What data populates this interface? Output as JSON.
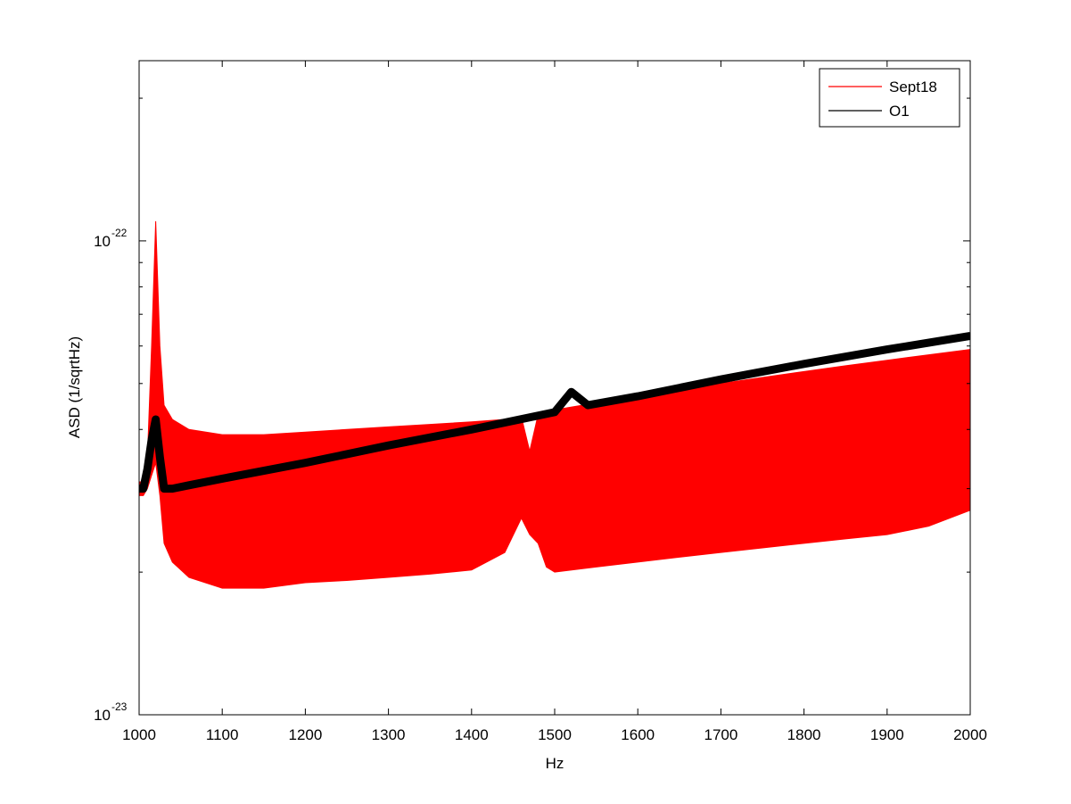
{
  "chart_data": {
    "type": "line",
    "xlabel": "Hz",
    "ylabel": "ASD (1/sqrtHz)",
    "x_ticks": [
      1000,
      1100,
      1200,
      1300,
      1400,
      1500,
      1600,
      1700,
      1800,
      1900,
      2000
    ],
    "xlim": [
      1000,
      2000
    ],
    "y_scale": "log",
    "ylim": [
      1e-23,
      2.4e-22
    ],
    "y_tick_labels": [
      {
        "value": 1e-23,
        "base": "10",
        "exp": "-23"
      },
      {
        "value": 1e-22,
        "base": "10",
        "exp": "-22"
      }
    ],
    "grid": false,
    "legend_position": "top-right",
    "series": [
      {
        "name": "Sept18",
        "color": "#ff0000",
        "x": [
          1000,
          1005,
          1010,
          1015,
          1020,
          1025,
          1030,
          1040,
          1060,
          1100,
          1150,
          1200,
          1250,
          1300,
          1350,
          1400,
          1440,
          1460,
          1470,
          1480,
          1490,
          1500,
          1550,
          1600,
          1650,
          1700,
          1750,
          1800,
          1850,
          1900,
          1950,
          2000
        ],
        "y_upper": [
          3.1e-23,
          3.1e-23,
          3.5e-23,
          6e-23,
          1.1e-22,
          6e-23,
          4.5e-23,
          4.2e-23,
          4e-23,
          3.9e-23,
          3.9e-23,
          3.95e-23,
          4e-23,
          4.05e-23,
          4.1e-23,
          4.15e-23,
          4.2e-23,
          4.25e-23,
          3.6e-23,
          4.3e-23,
          4.35e-23,
          4.4e-23,
          4.55e-23,
          4.7e-23,
          4.85e-23,
          5e-23,
          5.15e-23,
          5.3e-23,
          5.45e-23,
          5.6e-23,
          5.75e-23,
          5.9e-23
        ],
        "y_lower": [
          2.9e-23,
          2.9e-23,
          3e-23,
          3.2e-23,
          3.4e-23,
          2.9e-23,
          2.3e-23,
          2.1e-23,
          1.95e-23,
          1.85e-23,
          1.85e-23,
          1.9e-23,
          1.92e-23,
          1.95e-23,
          1.98e-23,
          2.02e-23,
          2.2e-23,
          2.6e-23,
          2.4e-23,
          2.3e-23,
          2.05e-23,
          2e-23,
          2.05e-23,
          2.1e-23,
          2.15e-23,
          2.2e-23,
          2.25e-23,
          2.3e-23,
          2.35e-23,
          2.4e-23,
          2.5e-23,
          2.7e-23
        ]
      },
      {
        "name": "O1",
        "color": "#000000",
        "x": [
          1000,
          1005,
          1010,
          1015,
          1020,
          1025,
          1030,
          1040,
          1060,
          1100,
          1200,
          1300,
          1400,
          1500,
          1520,
          1540,
          1600,
          1700,
          1800,
          1900,
          2000
        ],
        "y": [
          3e-23,
          3e-23,
          3.3e-23,
          3.8e-23,
          4.2e-23,
          3.5e-23,
          3e-23,
          3e-23,
          3.05e-23,
          3.15e-23,
          3.4e-23,
          3.7e-23,
          4e-23,
          4.35e-23,
          4.8e-23,
          4.5e-23,
          4.7e-23,
          5.1e-23,
          5.5e-23,
          5.9e-23,
          6.3e-23
        ]
      }
    ]
  }
}
